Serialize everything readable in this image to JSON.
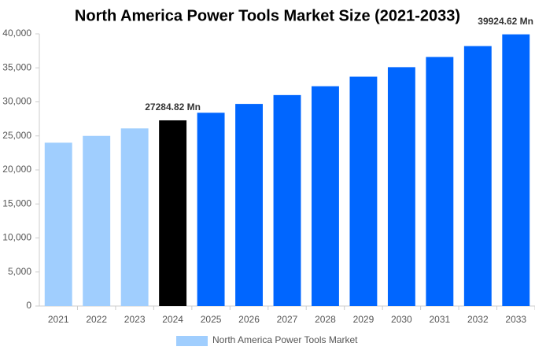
{
  "chart_data": {
    "type": "bar",
    "title": "North America Power Tools Market Size (2021-2033)",
    "categories": [
      "2021",
      "2022",
      "2023",
      "2024",
      "2025",
      "2026",
      "2027",
      "2028",
      "2029",
      "2030",
      "2031",
      "2032",
      "2033"
    ],
    "series": [
      {
        "name": "North America Power Tools Market",
        "color": "#a0cefe",
        "bar_colors": [
          "#a0cefe",
          "#a0cefe",
          "#a0cefe",
          "#000000",
          "#0066ff",
          "#0066ff",
          "#0066ff",
          "#0066ff",
          "#0066ff",
          "#0066ff",
          "#0066ff",
          "#0066ff",
          "#0066ff"
        ],
        "values": [
          24000,
          25000,
          26100,
          27284.82,
          28400,
          29700,
          31000,
          32300,
          33700,
          35100,
          36600,
          38200,
          39924.62
        ],
        "value_labels": [
          null,
          null,
          null,
          "27284.82 Mn",
          null,
          null,
          null,
          null,
          null,
          null,
          null,
          null,
          "39924.62 Mn"
        ]
      }
    ],
    "ylim": [
      0,
      40000
    ],
    "yticks": [
      0,
      {
        "value": 5000,
        "label": "5,000"
      },
      {
        "value": 10000,
        "label": "10,000"
      },
      {
        "value": 15000,
        "label": "15,000"
      },
      {
        "value": 20000,
        "label": "20,000"
      },
      {
        "value": 25000,
        "label": "25,000"
      },
      {
        "value": 30000,
        "label": "30,000"
      },
      {
        "value": 35000,
        "label": "35,000"
      },
      {
        "value": 40000,
        "label": "40,000"
      }
    ],
    "grid": false,
    "legend": "bottom"
  }
}
